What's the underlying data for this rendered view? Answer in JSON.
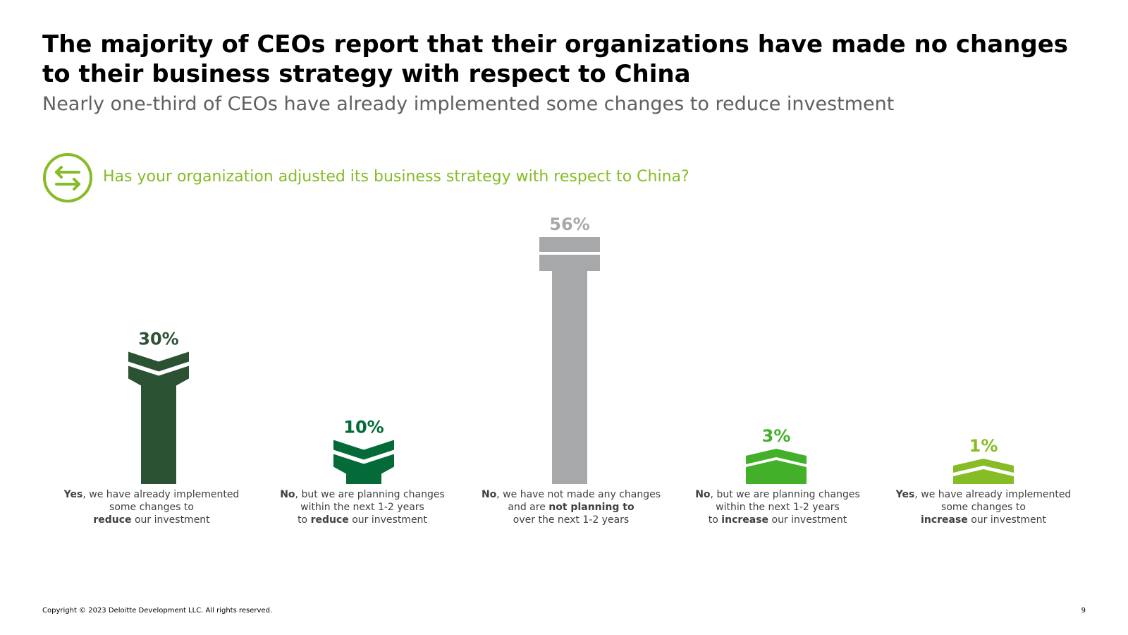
{
  "title": "The majority of CEOs report that their organizations have made no changes to their business strategy with respect to China",
  "subtitle": "Nearly one-third of CEOs have already implemented some changes to reduce investment",
  "question": "Has your organization adjusted its business strategy with respect to China?",
  "question_icon": "exchange-arrows-icon",
  "colors": {
    "accent": "#86bc25",
    "dark_green": "#2c5234",
    "green": "#046a38",
    "gray": "#a7a8aa",
    "bright_green": "#43b02a",
    "lime": "#86bc25"
  },
  "chart_data": {
    "type": "bar",
    "categories": [
      "Yes, we have already implemented some changes to reduce our investment",
      "No, but we are planning changes within the next 1-2 years to reduce our investment",
      "No, we have not made any changes and are not planning to over the next 1-2 years",
      "No, but we are planning changes within the next 1-2 years to increase our investment",
      "Yes, we have already implemented some changes to increase our investment"
    ],
    "values": [
      30,
      10,
      56,
      3,
      1
    ],
    "value_labels": [
      "30%",
      "10%",
      "56%",
      "3%",
      "1%"
    ],
    "marker_shapes": [
      "chevron-down",
      "chevron-down",
      "equals",
      "chevron-up",
      "chevron-up"
    ],
    "bar_colors": [
      "#2c5234",
      "#046a38",
      "#a7a8aa",
      "#43b02a",
      "#86bc25"
    ],
    "label_colors": [
      "#2c5234",
      "#046a38",
      "#a7a8aa",
      "#43b02a",
      "#86bc25"
    ],
    "ylim": [
      0,
      56
    ],
    "grid": false,
    "legend": "none"
  },
  "category_labels": [
    {
      "bold1": "Yes",
      "text1": ", we have already implemented",
      "line2": "some changes to",
      "bold3": "reduce",
      "text3": " our investment"
    },
    {
      "bold1": "No",
      "text1": ", but we are planning changes",
      "line2": "within the next 1-2 years",
      "pre3": "to ",
      "bold3": "reduce",
      "text3": " our investment"
    },
    {
      "bold1": "No",
      "text1": ", we have not made any changes",
      "line2a": "and are ",
      "line2b": "not planning to",
      "line3": "over the next 1-2 years"
    },
    {
      "bold1": "No",
      "text1": ", but we are planning changes",
      "line2": "within the next 1-2 years",
      "pre3": "to ",
      "bold3": "increase",
      "text3": " our investment"
    },
    {
      "bold1": "Yes",
      "text1": ", we have already implemented",
      "line2": "some changes to",
      "bold3": "increase",
      "text3": " our investment"
    }
  ],
  "footer": {
    "copyright": "Copyright © 2023 Deloitte Development LLC. All rights reserved.",
    "page": "9"
  }
}
